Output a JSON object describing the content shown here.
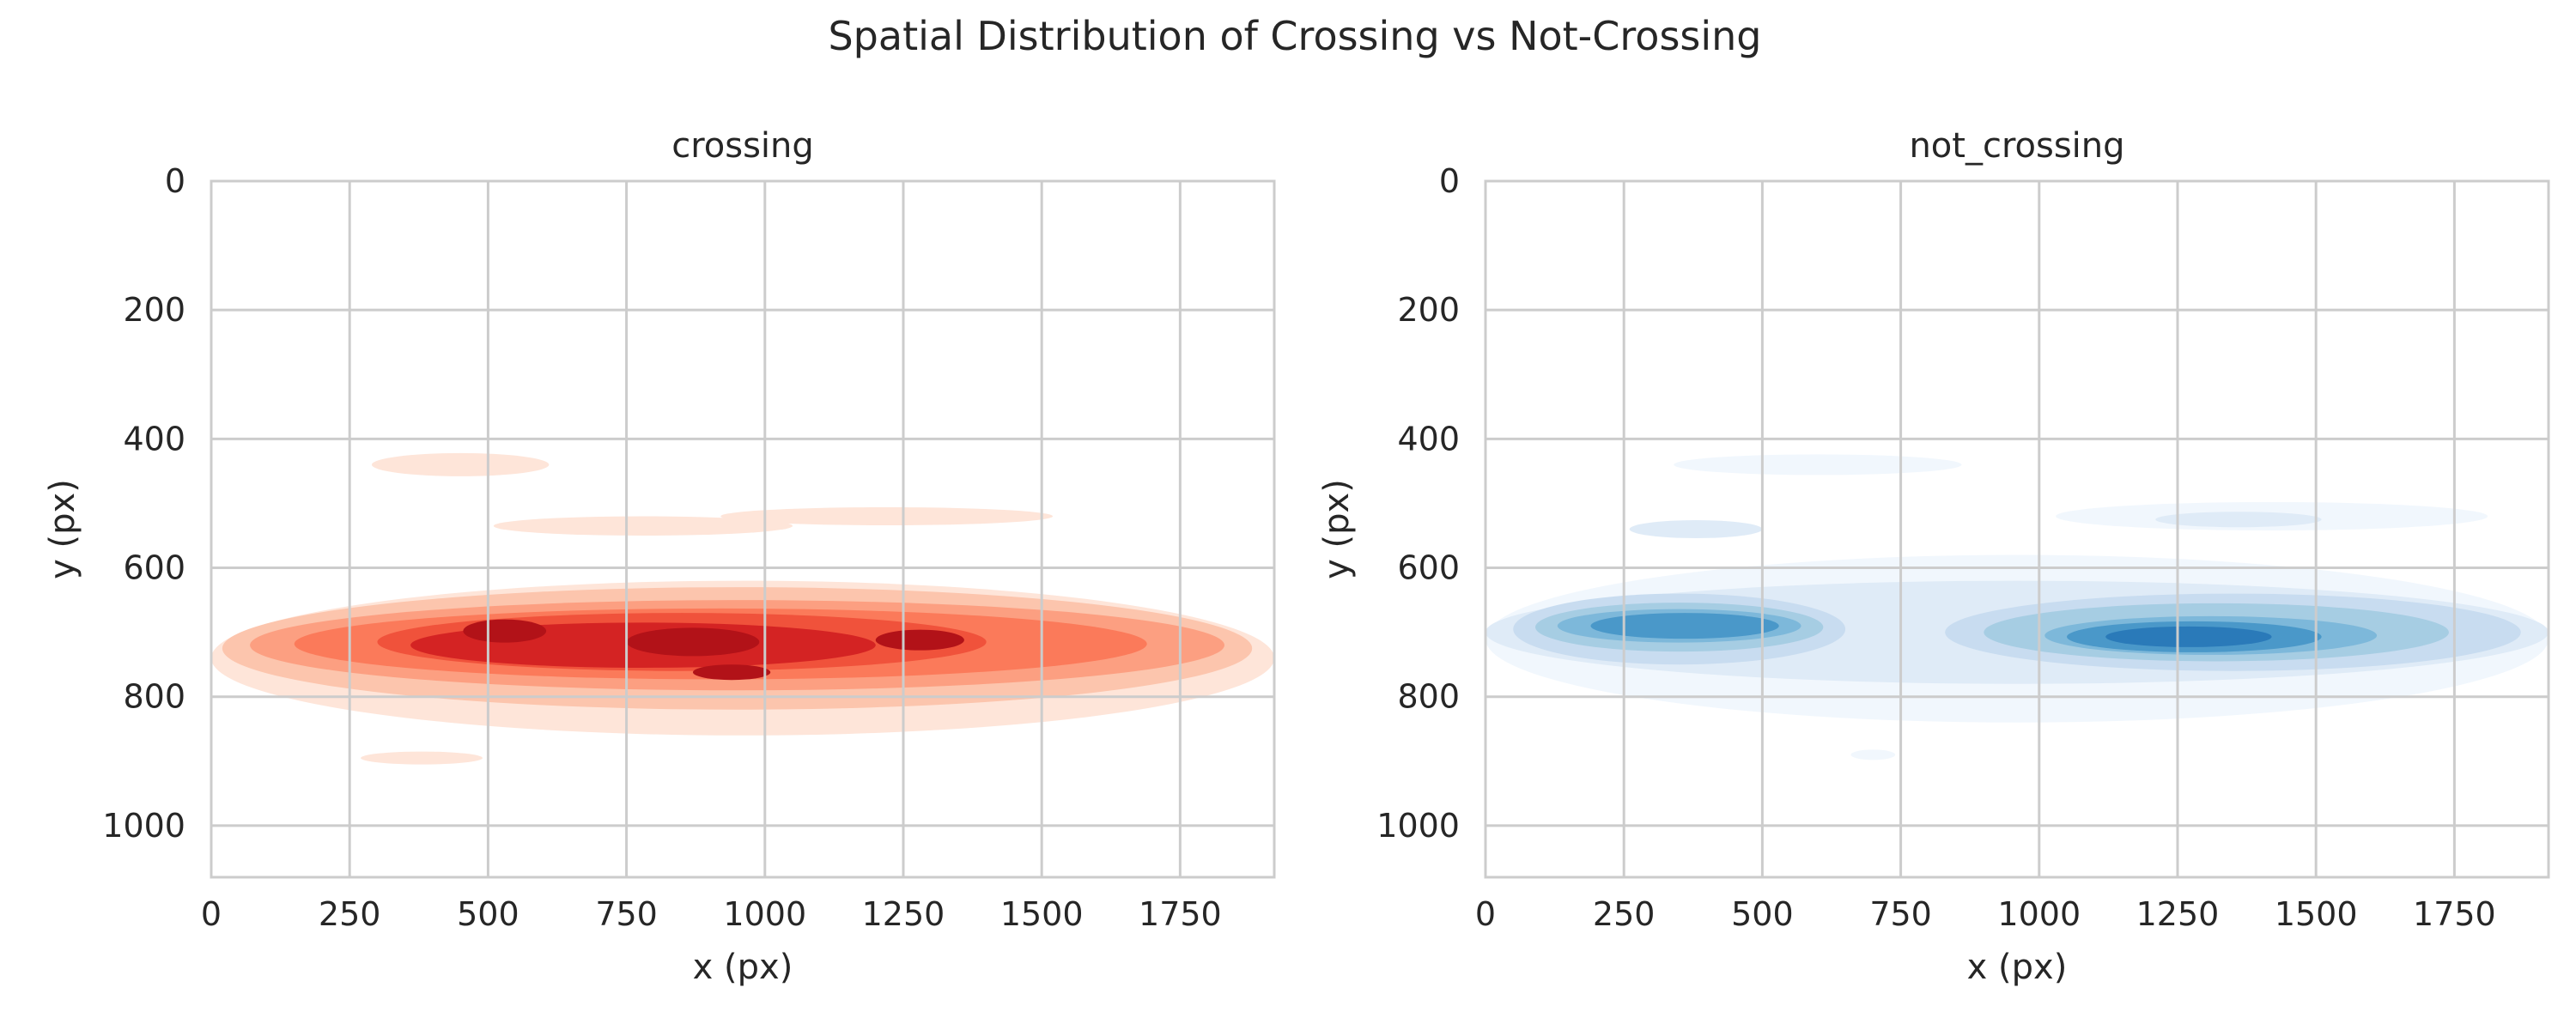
{
  "figure": {
    "title": "Spatial Distribution of Crossing vs Not-Crossing"
  },
  "chart_data": [
    {
      "type": "heatmap",
      "subtype": "kde-contour",
      "title": "crossing",
      "xlabel": "x (px)",
      "ylabel": "y (px)",
      "xlim": [
        0,
        1920
      ],
      "ylim": [
        1080,
        0
      ],
      "y_inverted": true,
      "xticks": [
        0,
        250,
        500,
        750,
        1000,
        1250,
        1500,
        1750
      ],
      "yticks": [
        0,
        200,
        400,
        600,
        800,
        1000
      ],
      "grid": true,
      "colormap": "Reds",
      "colors": [
        "#fee5d9",
        "#fcc5ad",
        "#fc9f81",
        "#fb7a5a",
        "#f0523b",
        "#d42323",
        "#b21218",
        "#8f0a12"
      ],
      "density_blobs": [
        {
          "x": 960,
          "y": 740,
          "rx": 960,
          "ry": 120,
          "level": 1
        },
        {
          "x": 450,
          "y": 440,
          "rx": 160,
          "ry": 18,
          "level": 1
        },
        {
          "x": 780,
          "y": 535,
          "rx": 270,
          "ry": 15,
          "level": 1
        },
        {
          "x": 1220,
          "y": 520,
          "rx": 300,
          "ry": 14,
          "level": 1
        },
        {
          "x": 380,
          "y": 895,
          "rx": 110,
          "ry": 10,
          "level": 1
        },
        {
          "x": 950,
          "y": 725,
          "rx": 930,
          "ry": 95,
          "level": 2
        },
        {
          "x": 950,
          "y": 720,
          "rx": 880,
          "ry": 70,
          "level": 3
        },
        {
          "x": 920,
          "y": 718,
          "rx": 770,
          "ry": 55,
          "level": 4
        },
        {
          "x": 850,
          "y": 715,
          "rx": 550,
          "ry": 45,
          "level": 5
        },
        {
          "x": 780,
          "y": 720,
          "rx": 420,
          "ry": 35,
          "level": 6
        },
        {
          "x": 530,
          "y": 698,
          "rx": 75,
          "ry": 18,
          "level": 7
        },
        {
          "x": 870,
          "y": 715,
          "rx": 120,
          "ry": 22,
          "level": 7
        },
        {
          "x": 1280,
          "y": 712,
          "rx": 80,
          "ry": 16,
          "level": 7
        },
        {
          "x": 940,
          "y": 762,
          "rx": 70,
          "ry": 12,
          "level": 7
        }
      ]
    },
    {
      "type": "heatmap",
      "subtype": "kde-contour",
      "title": "not_crossing",
      "xlabel": "x (px)",
      "ylabel": "y (px)",
      "xlim": [
        0,
        1920
      ],
      "ylim": [
        1080,
        0
      ],
      "y_inverted": true,
      "xticks": [
        0,
        250,
        500,
        750,
        1000,
        1250,
        1500,
        1750
      ],
      "yticks": [
        0,
        200,
        400,
        600,
        800,
        1000
      ],
      "grid": true,
      "colormap": "Blues",
      "colors": [
        "#f1f7fd",
        "#dfebf7",
        "#c8dcf0",
        "#a6cde3",
        "#7db8da",
        "#4a98c9",
        "#2a7ab9",
        "#0d52a1"
      ],
      "density_blobs": [
        {
          "x": 960,
          "y": 710,
          "rx": 960,
          "ry": 130,
          "level": 1
        },
        {
          "x": 600,
          "y": 440,
          "rx": 260,
          "ry": 16,
          "level": 1
        },
        {
          "x": 1420,
          "y": 520,
          "rx": 390,
          "ry": 22,
          "level": 1
        },
        {
          "x": 700,
          "y": 890,
          "rx": 40,
          "ry": 8,
          "level": 1
        },
        {
          "x": 960,
          "y": 700,
          "rx": 960,
          "ry": 80,
          "level": 2
        },
        {
          "x": 380,
          "y": 540,
          "rx": 120,
          "ry": 14,
          "level": 2
        },
        {
          "x": 1360,
          "y": 525,
          "rx": 150,
          "ry": 12,
          "level": 2
        },
        {
          "x": 350,
          "y": 695,
          "rx": 300,
          "ry": 55,
          "level": 3
        },
        {
          "x": 1350,
          "y": 700,
          "rx": 520,
          "ry": 60,
          "level": 3
        },
        {
          "x": 350,
          "y": 692,
          "rx": 260,
          "ry": 38,
          "level": 4
        },
        {
          "x": 1320,
          "y": 700,
          "rx": 420,
          "ry": 45,
          "level": 4
        },
        {
          "x": 350,
          "y": 690,
          "rx": 220,
          "ry": 26,
          "level": 5
        },
        {
          "x": 1310,
          "y": 705,
          "rx": 300,
          "ry": 30,
          "level": 5
        },
        {
          "x": 360,
          "y": 690,
          "rx": 170,
          "ry": 20,
          "level": 6
        },
        {
          "x": 1280,
          "y": 707,
          "rx": 230,
          "ry": 24,
          "level": 6
        },
        {
          "x": 1270,
          "y": 707,
          "rx": 150,
          "ry": 16,
          "level": 7
        }
      ]
    }
  ]
}
